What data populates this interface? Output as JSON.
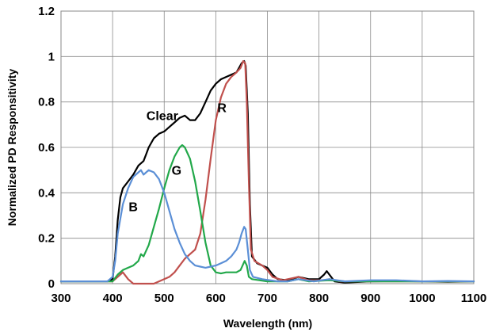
{
  "chart_data": {
    "type": "line",
    "title": "",
    "xlabel": "Wavelength (nm)",
    "ylabel": "Normalized PD Responsitivity",
    "xlim": [
      300,
      1100
    ],
    "ylim": [
      0,
      1.2
    ],
    "x_ticks": [
      "300",
      "400",
      "500",
      "600",
      "700",
      "800",
      "900",
      "1000",
      "1100"
    ],
    "y_ticks": [
      "0",
      "0.2",
      "0.4",
      "0.6",
      "0.8",
      "1",
      "1.2"
    ],
    "grid": true,
    "legend": "none",
    "annotations": [
      {
        "text": "Clear",
        "series": "Clear"
      },
      {
        "text": "R",
        "series": "R"
      },
      {
        "text": "G",
        "series": "G"
      },
      {
        "text": "B",
        "series": "B"
      }
    ],
    "series": [
      {
        "name": "Clear",
        "color": "#000000",
        "points": [
          [
            300,
            0.01
          ],
          [
            390,
            0.01
          ],
          [
            400,
            0.02
          ],
          [
            405,
            0.12
          ],
          [
            410,
            0.28
          ],
          [
            415,
            0.38
          ],
          [
            420,
            0.42
          ],
          [
            430,
            0.45
          ],
          [
            440,
            0.48
          ],
          [
            450,
            0.52
          ],
          [
            460,
            0.54
          ],
          [
            465,
            0.57
          ],
          [
            470,
            0.6
          ],
          [
            480,
            0.64
          ],
          [
            490,
            0.66
          ],
          [
            500,
            0.67
          ],
          [
            510,
            0.69
          ],
          [
            520,
            0.71
          ],
          [
            530,
            0.73
          ],
          [
            540,
            0.74
          ],
          [
            550,
            0.72
          ],
          [
            560,
            0.72
          ],
          [
            570,
            0.75
          ],
          [
            580,
            0.8
          ],
          [
            590,
            0.85
          ],
          [
            600,
            0.88
          ],
          [
            610,
            0.9
          ],
          [
            620,
            0.91
          ],
          [
            630,
            0.92
          ],
          [
            640,
            0.93
          ],
          [
            645,
            0.95
          ],
          [
            650,
            0.97
          ],
          [
            655,
            0.98
          ],
          [
            658,
            0.96
          ],
          [
            662,
            0.75
          ],
          [
            666,
            0.35
          ],
          [
            670,
            0.12
          ],
          [
            680,
            0.09
          ],
          [
            690,
            0.08
          ],
          [
            700,
            0.07
          ],
          [
            710,
            0.04
          ],
          [
            720,
            0.02
          ],
          [
            740,
            0.015
          ],
          [
            760,
            0.03
          ],
          [
            780,
            0.02
          ],
          [
            800,
            0.02
          ],
          [
            810,
            0.04
          ],
          [
            815,
            0.055
          ],
          [
            820,
            0.04
          ],
          [
            830,
            0.01
          ],
          [
            850,
            0.005
          ],
          [
            900,
            0.01
          ],
          [
            950,
            0.012
          ],
          [
            1000,
            0.01
          ],
          [
            1050,
            0.008
          ],
          [
            1100,
            0.01
          ]
        ]
      },
      {
        "name": "R",
        "color": "#c0504d",
        "points": [
          [
            300,
            0.01
          ],
          [
            400,
            0.01
          ],
          [
            410,
            0.03
          ],
          [
            420,
            0.05
          ],
          [
            430,
            0.02
          ],
          [
            440,
            0.0
          ],
          [
            460,
            0.0
          ],
          [
            480,
            0.0
          ],
          [
            500,
            0.02
          ],
          [
            510,
            0.03
          ],
          [
            520,
            0.05
          ],
          [
            530,
            0.08
          ],
          [
            540,
            0.11
          ],
          [
            550,
            0.13
          ],
          [
            560,
            0.15
          ],
          [
            570,
            0.22
          ],
          [
            580,
            0.37
          ],
          [
            590,
            0.55
          ],
          [
            600,
            0.72
          ],
          [
            610,
            0.82
          ],
          [
            620,
            0.88
          ],
          [
            630,
            0.91
          ],
          [
            640,
            0.93
          ],
          [
            648,
            0.95
          ],
          [
            653,
            0.98
          ],
          [
            657,
            0.97
          ],
          [
            660,
            0.8
          ],
          [
            664,
            0.45
          ],
          [
            668,
            0.15
          ],
          [
            675,
            0.1
          ],
          [
            690,
            0.08
          ],
          [
            700,
            0.06
          ],
          [
            710,
            0.03
          ],
          [
            730,
            0.015
          ],
          [
            760,
            0.03
          ],
          [
            780,
            0.015
          ],
          [
            810,
            0.015
          ],
          [
            820,
            0.02
          ],
          [
            840,
            0.01
          ],
          [
            900,
            0.01
          ],
          [
            1000,
            0.01
          ],
          [
            1100,
            0.01
          ]
        ]
      },
      {
        "name": "G",
        "color": "#22a84a",
        "points": [
          [
            300,
            0.01
          ],
          [
            400,
            0.01
          ],
          [
            410,
            0.04
          ],
          [
            420,
            0.06
          ],
          [
            430,
            0.07
          ],
          [
            440,
            0.08
          ],
          [
            450,
            0.1
          ],
          [
            455,
            0.13
          ],
          [
            460,
            0.12
          ],
          [
            470,
            0.17
          ],
          [
            480,
            0.25
          ],
          [
            490,
            0.33
          ],
          [
            500,
            0.42
          ],
          [
            510,
            0.5
          ],
          [
            520,
            0.56
          ],
          [
            530,
            0.6
          ],
          [
            535,
            0.61
          ],
          [
            540,
            0.6
          ],
          [
            550,
            0.55
          ],
          [
            560,
            0.45
          ],
          [
            570,
            0.32
          ],
          [
            580,
            0.18
          ],
          [
            590,
            0.08
          ],
          [
            600,
            0.05
          ],
          [
            610,
            0.045
          ],
          [
            620,
            0.05
          ],
          [
            630,
            0.05
          ],
          [
            640,
            0.05
          ],
          [
            648,
            0.06
          ],
          [
            652,
            0.08
          ],
          [
            656,
            0.1
          ],
          [
            660,
            0.08
          ],
          [
            664,
            0.03
          ],
          [
            670,
            0.02
          ],
          [
            700,
            0.01
          ],
          [
            740,
            0.01
          ],
          [
            760,
            0.02
          ],
          [
            780,
            0.01
          ],
          [
            820,
            0.015
          ],
          [
            850,
            0.01
          ],
          [
            900,
            0.01
          ],
          [
            1000,
            0.01
          ],
          [
            1100,
            0.01
          ]
        ]
      },
      {
        "name": "B",
        "color": "#5b8fd6",
        "points": [
          [
            300,
            0.01
          ],
          [
            390,
            0.01
          ],
          [
            400,
            0.03
          ],
          [
            405,
            0.1
          ],
          [
            410,
            0.22
          ],
          [
            420,
            0.35
          ],
          [
            430,
            0.42
          ],
          [
            440,
            0.47
          ],
          [
            450,
            0.49
          ],
          [
            455,
            0.5
          ],
          [
            460,
            0.48
          ],
          [
            465,
            0.49
          ],
          [
            470,
            0.5
          ],
          [
            480,
            0.49
          ],
          [
            490,
            0.46
          ],
          [
            500,
            0.4
          ],
          [
            510,
            0.32
          ],
          [
            520,
            0.24
          ],
          [
            530,
            0.18
          ],
          [
            540,
            0.13
          ],
          [
            550,
            0.1
          ],
          [
            560,
            0.08
          ],
          [
            570,
            0.075
          ],
          [
            580,
            0.07
          ],
          [
            590,
            0.075
          ],
          [
            600,
            0.08
          ],
          [
            610,
            0.09
          ],
          [
            620,
            0.1
          ],
          [
            630,
            0.12
          ],
          [
            640,
            0.15
          ],
          [
            645,
            0.18
          ],
          [
            650,
            0.22
          ],
          [
            655,
            0.25
          ],
          [
            658,
            0.24
          ],
          [
            662,
            0.15
          ],
          [
            666,
            0.06
          ],
          [
            672,
            0.03
          ],
          [
            690,
            0.02
          ],
          [
            720,
            0.01
          ],
          [
            740,
            0.01
          ],
          [
            760,
            0.02
          ],
          [
            790,
            0.01
          ],
          [
            820,
            0.02
          ],
          [
            850,
            0.01
          ],
          [
            900,
            0.015
          ],
          [
            950,
            0.015
          ],
          [
            1000,
            0.01
          ],
          [
            1050,
            0.012
          ],
          [
            1100,
            0.01
          ]
        ]
      }
    ]
  }
}
